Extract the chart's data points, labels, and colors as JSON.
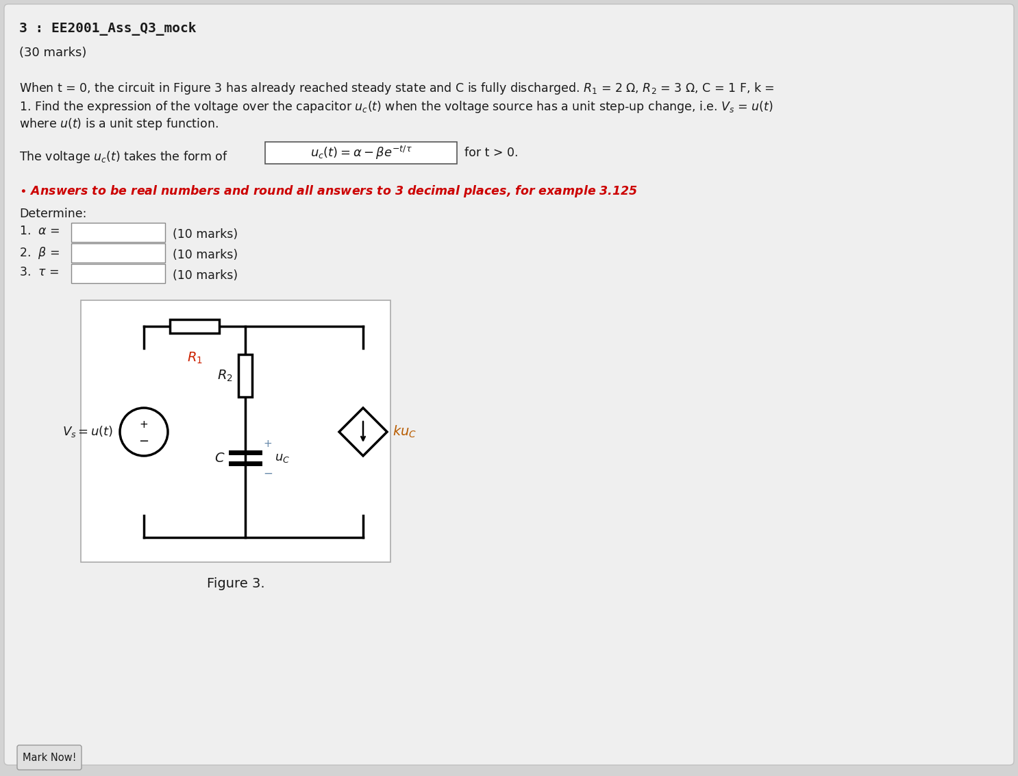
{
  "bg_color": "#d3d3d3",
  "card_bg": "#efefef",
  "card_border": "#c0c0c0",
  "title": "3 : EE2001_Ass_Q3_mock",
  "subtitle": "(30 marks)",
  "circuit_bg": "#ffffff",
  "button_text": "Mark Now!",
  "text_color": "#1a1a1a",
  "red_color": "#cc0000",
  "orange_color": "#b85c00",
  "figure_caption": "Figure 3.",
  "lw_circuit": 2.5
}
